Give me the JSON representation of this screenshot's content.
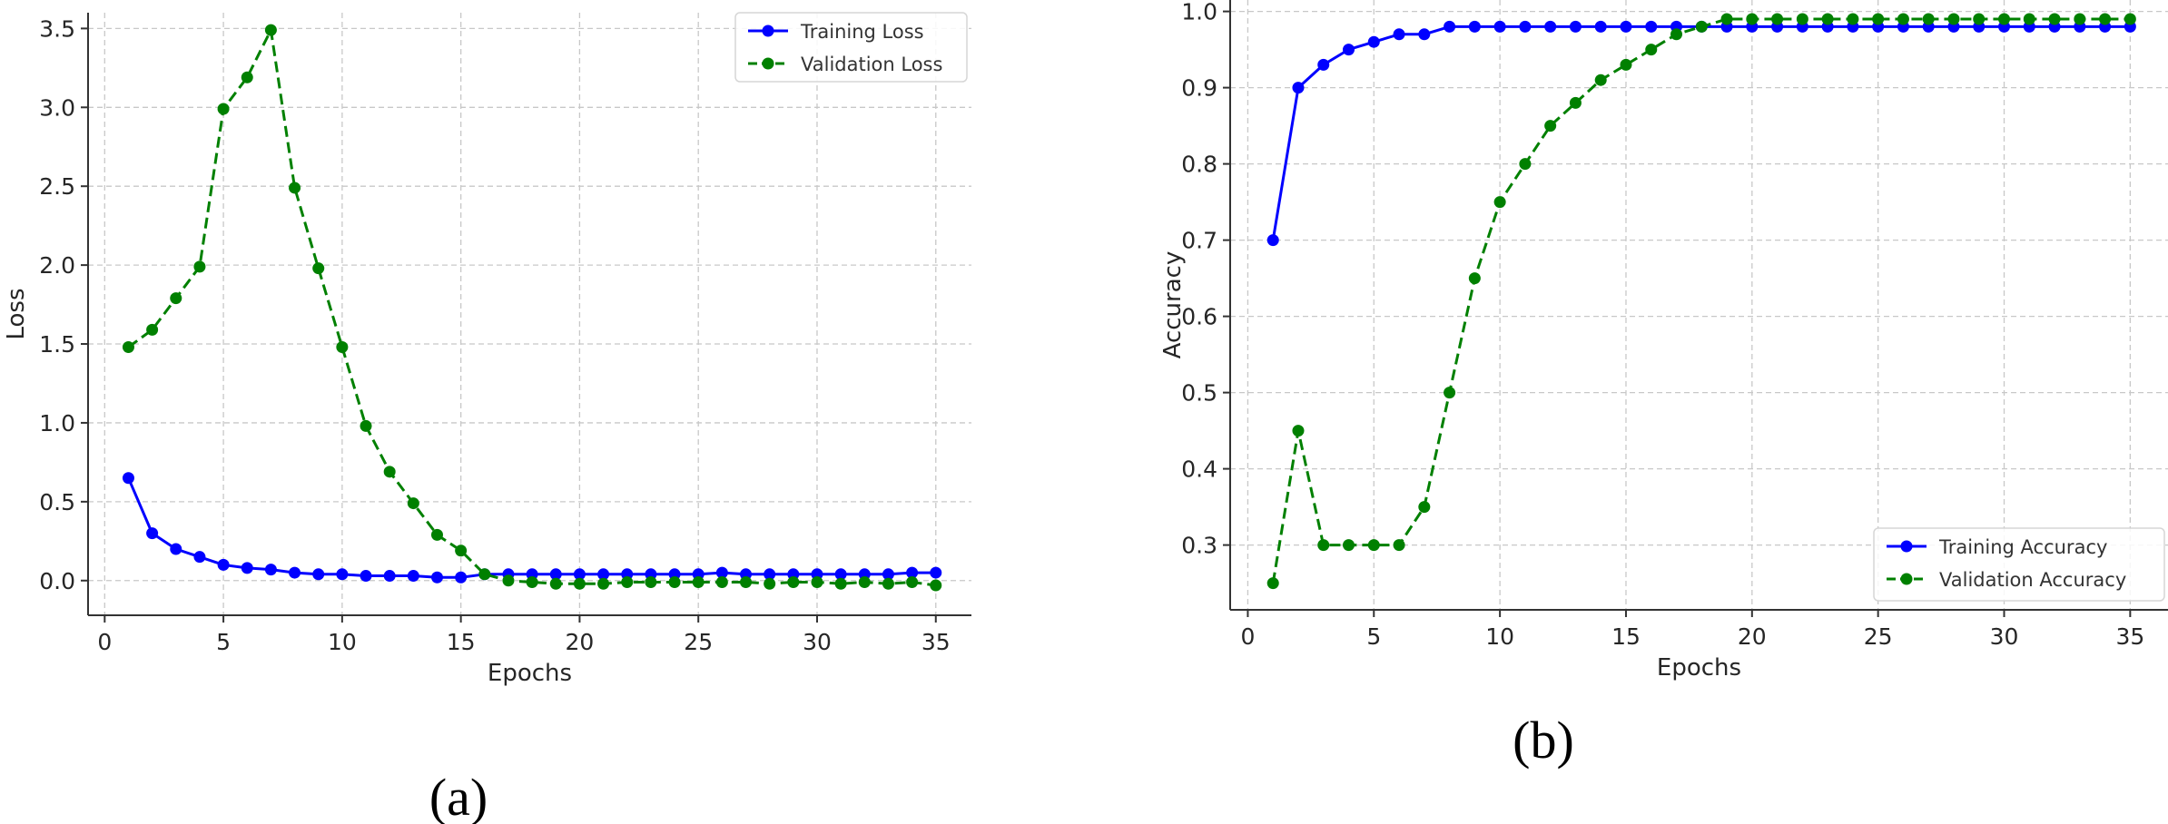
{
  "chart_data": [
    {
      "type": "line",
      "panel_label": "(a)",
      "title": "",
      "xlabel": "Epochs",
      "ylabel": "Loss",
      "xlim": [
        -0.7,
        36.5
      ],
      "ylim": [
        -0.22,
        3.6
      ],
      "xticks": [
        0,
        5,
        10,
        15,
        20,
        25,
        30,
        35
      ],
      "yticks": [
        0.0,
        0.5,
        1.0,
        1.5,
        2.0,
        2.5,
        3.0,
        3.5
      ],
      "ytick_labels": [
        "0.0",
        "0.5",
        "1.0",
        "1.5",
        "2.0",
        "2.5",
        "3.0",
        "3.5"
      ],
      "grid": true,
      "legend_position": "top-right",
      "x": [
        1,
        2,
        3,
        4,
        5,
        6,
        7,
        8,
        9,
        10,
        11,
        12,
        13,
        14,
        15,
        16,
        17,
        18,
        19,
        20,
        21,
        22,
        23,
        24,
        25,
        26,
        27,
        28,
        29,
        30,
        31,
        32,
        33,
        34,
        35
      ],
      "series": [
        {
          "name": "Training Loss",
          "color": "#0000ff",
          "style": "solid",
          "values": [
            0.65,
            0.3,
            0.2,
            0.15,
            0.1,
            0.08,
            0.07,
            0.05,
            0.04,
            0.04,
            0.03,
            0.03,
            0.03,
            0.02,
            0.02,
            0.04,
            0.04,
            0.04,
            0.04,
            0.04,
            0.04,
            0.04,
            0.04,
            0.04,
            0.04,
            0.05,
            0.04,
            0.04,
            0.04,
            0.04,
            0.04,
            0.04,
            0.04,
            0.05,
            0.05
          ]
        },
        {
          "name": "Validation Loss",
          "color": "#008000",
          "style": "dashed",
          "values": [
            1.48,
            1.59,
            1.79,
            1.99,
            2.99,
            3.19,
            3.49,
            2.49,
            1.98,
            1.48,
            0.98,
            0.69,
            0.49,
            0.29,
            0.19,
            0.04,
            0.0,
            -0.01,
            -0.02,
            -0.02,
            -0.02,
            -0.01,
            -0.01,
            -0.01,
            -0.01,
            -0.01,
            -0.01,
            -0.02,
            -0.01,
            -0.01,
            -0.02,
            -0.01,
            -0.02,
            -0.01,
            -0.03
          ]
        }
      ]
    },
    {
      "type": "line",
      "panel_label": "(b)",
      "title": "",
      "xlabel": "Epochs",
      "ylabel": "Accuracy",
      "xlim": [
        -0.7,
        36.5
      ],
      "ylim": [
        0.215,
        1.015
      ],
      "xticks": [
        0,
        5,
        10,
        15,
        20,
        25,
        30,
        35
      ],
      "yticks": [
        0.3,
        0.4,
        0.5,
        0.6,
        0.7,
        0.8,
        0.9,
        1.0
      ],
      "ytick_labels": [
        "0.3",
        "0.4",
        "0.5",
        "0.6",
        "0.7",
        "0.8",
        "0.9",
        "1.0"
      ],
      "grid": true,
      "legend_position": "bottom-right",
      "x": [
        1,
        2,
        3,
        4,
        5,
        6,
        7,
        8,
        9,
        10,
        11,
        12,
        13,
        14,
        15,
        16,
        17,
        18,
        19,
        20,
        21,
        22,
        23,
        24,
        25,
        26,
        27,
        28,
        29,
        30,
        31,
        32,
        33,
        34,
        35
      ],
      "series": [
        {
          "name": "Training Accuracy",
          "color": "#0000ff",
          "style": "solid",
          "values": [
            0.7,
            0.9,
            0.93,
            0.95,
            0.96,
            0.97,
            0.97,
            0.98,
            0.98,
            0.98,
            0.98,
            0.98,
            0.98,
            0.98,
            0.98,
            0.98,
            0.98,
            0.98,
            0.98,
            0.98,
            0.98,
            0.98,
            0.98,
            0.98,
            0.98,
            0.98,
            0.98,
            0.98,
            0.98,
            0.98,
            0.98,
            0.98,
            0.98,
            0.98,
            0.98
          ]
        },
        {
          "name": "Validation Accuracy",
          "color": "#008000",
          "style": "dashed",
          "values": [
            0.25,
            0.45,
            0.3,
            0.3,
            0.3,
            0.3,
            0.35,
            0.5,
            0.65,
            0.75,
            0.8,
            0.85,
            0.88,
            0.91,
            0.93,
            0.95,
            0.97,
            0.98,
            0.99,
            0.99,
            0.99,
            0.99,
            0.99,
            0.99,
            0.99,
            0.99,
            0.99,
            0.99,
            0.99,
            0.99,
            0.99,
            0.99,
            0.99,
            0.99,
            0.99
          ]
        }
      ]
    }
  ]
}
